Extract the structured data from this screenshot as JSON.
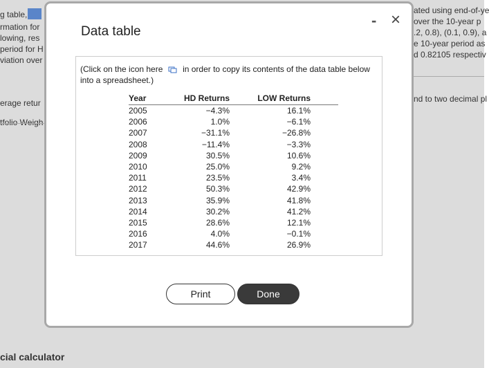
{
  "background": {
    "left_texts": [
      "g table,",
      "rmation for",
      "lowing, res",
      "period for H",
      "viation over",
      "erage retur",
      "tfolio Weigh",
      "cial calculator"
    ],
    "right_texts": [
      "ated using end-of-ye",
      "over the 10-year p",
      ".2, 0.8), (0.1, 0.9), a",
      "e 10-year period as",
      "d 0.82105 respectiv",
      "nd to two decimal pl"
    ]
  },
  "dialog": {
    "title": "Data table",
    "minimize": "-",
    "close": "×",
    "instruction_before": "(Click on the icon here",
    "instruction_after": "in order to copy its contents of the data table below into a spreadsheet.)",
    "table": {
      "headers": [
        "Year",
        "HD Returns",
        "LOW Returns"
      ],
      "rows": [
        [
          "2005",
          "−4.3%",
          "16.1%"
        ],
        [
          "2006",
          "1.0%",
          "−6.1%"
        ],
        [
          "2007",
          "−31.1%",
          "−26.8%"
        ],
        [
          "2008",
          "−11.4%",
          "−3.3%"
        ],
        [
          "2009",
          "30.5%",
          "10.6%"
        ],
        [
          "2010",
          "25.0%",
          "9.2%"
        ],
        [
          "2011",
          "23.5%",
          "3.4%"
        ],
        [
          "2012",
          "50.3%",
          "42.9%"
        ],
        [
          "2013",
          "35.9%",
          "41.8%"
        ],
        [
          "2014",
          "30.2%",
          "41.2%"
        ],
        [
          "2015",
          "28.6%",
          "12.1%"
        ],
        [
          "2016",
          "4.0%",
          "−0.1%"
        ],
        [
          "2017",
          "44.6%",
          "26.9%"
        ]
      ]
    },
    "buttons": [
      "Print",
      "Done"
    ]
  }
}
